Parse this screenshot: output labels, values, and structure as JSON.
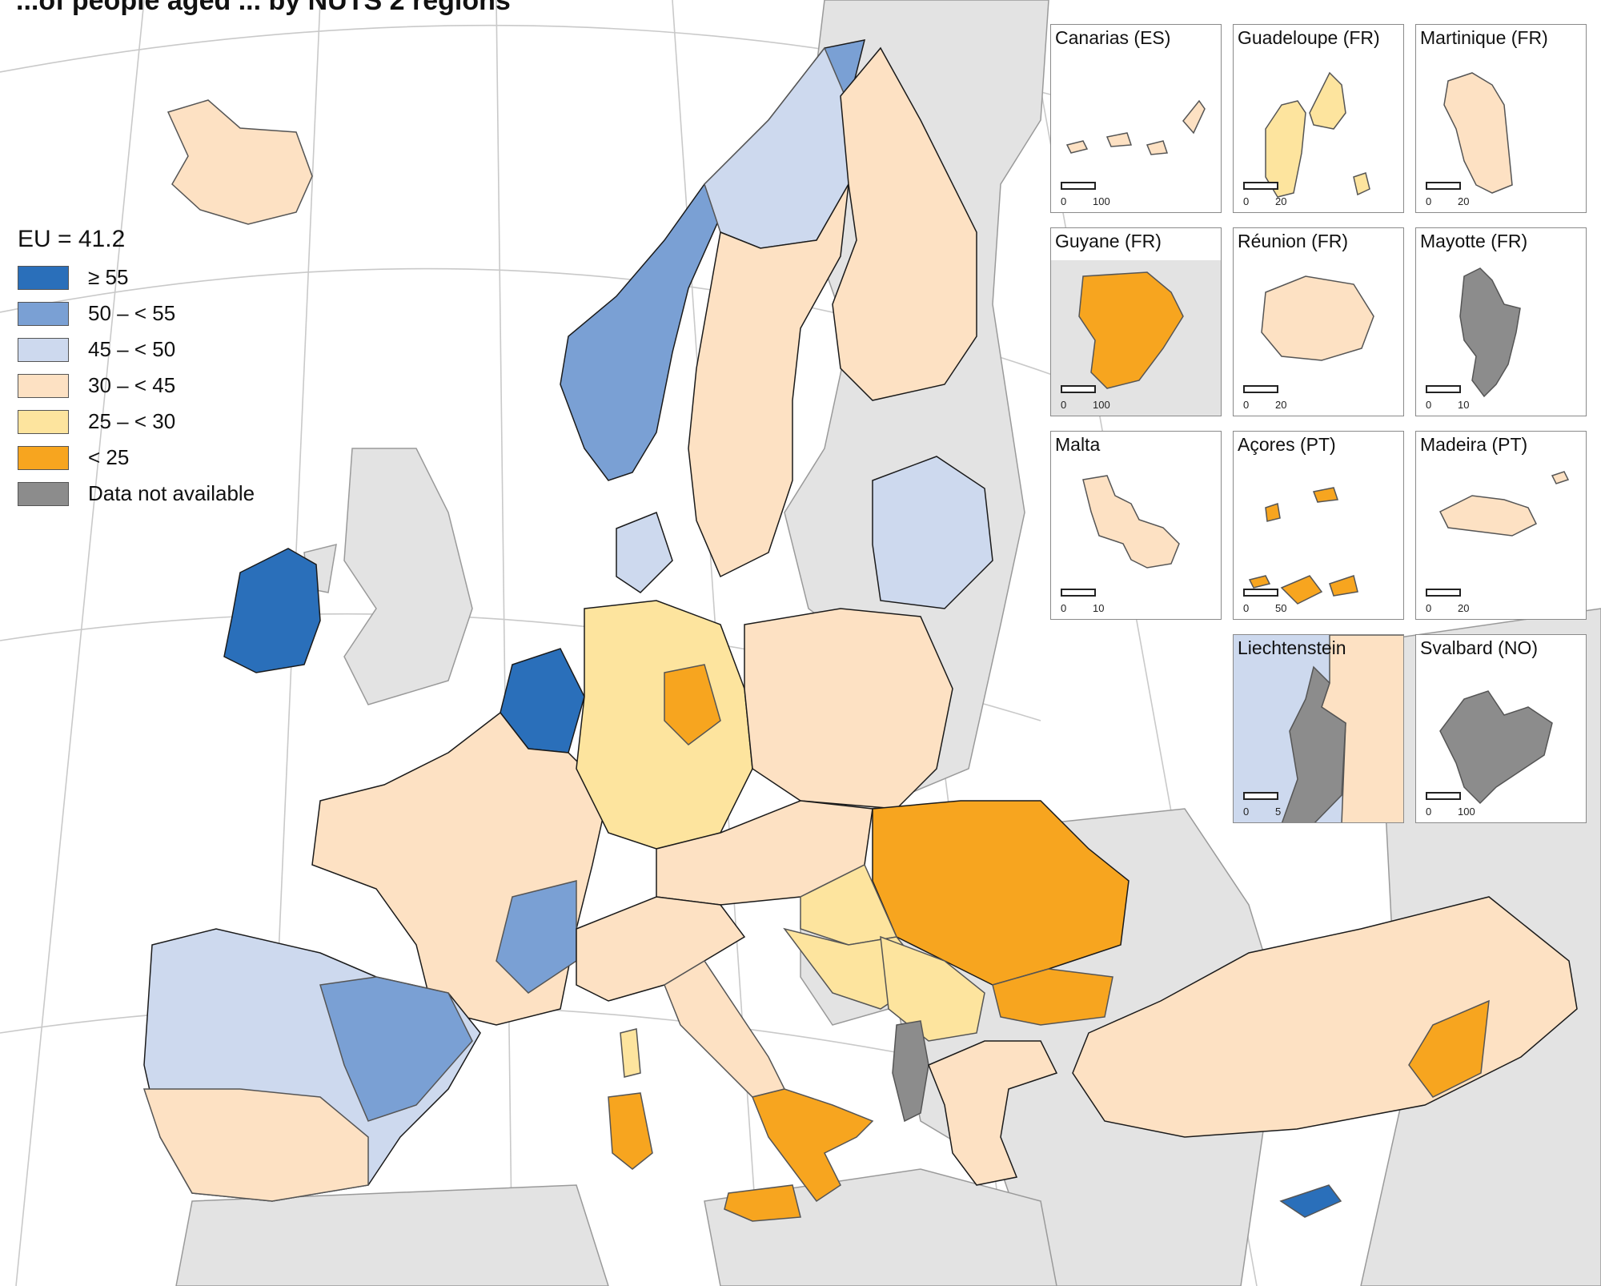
{
  "header": {
    "partial_title": "...of people aged ... by NUTS 2 regions"
  },
  "legend": {
    "title": "EU = 41.2",
    "classes": [
      {
        "label": "≥ 55",
        "color": "#2a6fba"
      },
      {
        "label": "50 – < 55",
        "color": "#7aa0d4"
      },
      {
        "label": "45 – < 50",
        "color": "#cdd9ee"
      },
      {
        "label": "30 – < 45",
        "color": "#fde1c3"
      },
      {
        "label": "25 – < 30",
        "color": "#fde49e"
      },
      {
        "label": "< 25",
        "color": "#f7a51f"
      },
      {
        "label": "Data not available",
        "color": "#8c8c8c"
      }
    ]
  },
  "colors": {
    "sea": "#ffffff",
    "non_eu_land": "#e3e3e3",
    "graticule": "#c9c9c9",
    "border": "#1a1a1a"
  },
  "insets": [
    {
      "name": "Canarias (ES)",
      "scale_max": "100",
      "fill": "#fde1c3"
    },
    {
      "name": "Guadeloupe (FR)",
      "scale_max": "20",
      "fill": "#fde49e"
    },
    {
      "name": "Martinique (FR)",
      "scale_max": "20",
      "fill": "#fde1c3"
    },
    {
      "name": "Guyane (FR)",
      "scale_max": "100",
      "fill": "#f7a51f"
    },
    {
      "name": "Réunion (FR)",
      "scale_max": "20",
      "fill": "#fde1c3"
    },
    {
      "name": "Mayotte (FR)",
      "scale_max": "10",
      "fill": "#8c8c8c"
    },
    {
      "name": "Malta",
      "scale_max": "10",
      "fill": "#fde1c3"
    },
    {
      "name": "Açores (PT)",
      "scale_max": "50",
      "fill": "#f7a51f"
    },
    {
      "name": "Madeira (PT)",
      "scale_max": "20",
      "fill": "#fde1c3"
    },
    {
      "name": "Liechtenstein",
      "scale_max": "5",
      "fill": "#8c8c8c"
    },
    {
      "name": "Svalbard (NO)",
      "scale_max": "100",
      "fill": "#8c8c8c"
    }
  ]
}
